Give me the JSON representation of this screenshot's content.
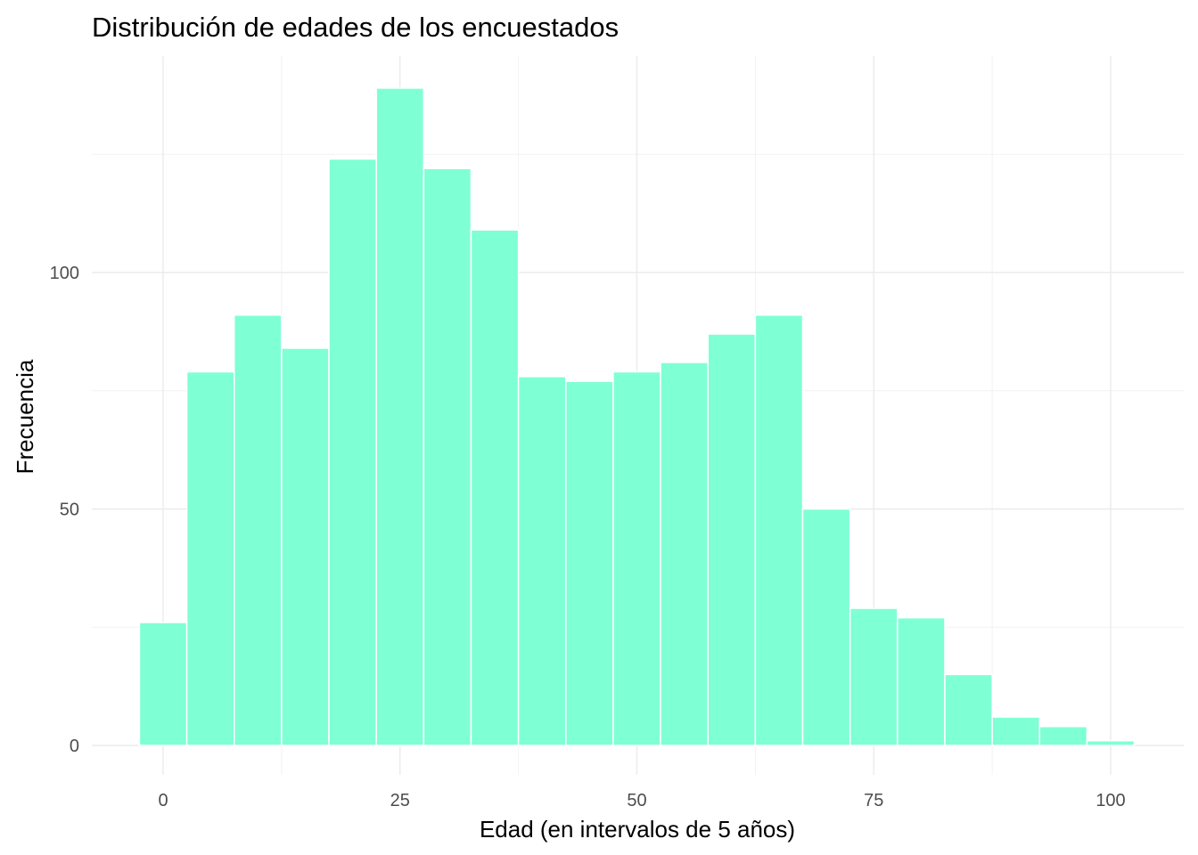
{
  "chart_data": {
    "type": "bar",
    "title": "Distribución de edades de los encuestados",
    "xlabel": "Edad (en intervalos de 5 años)",
    "ylabel": "Frecuencia",
    "bin_width": 5,
    "x": [
      0,
      5,
      10,
      15,
      20,
      25,
      30,
      35,
      40,
      45,
      50,
      55,
      60,
      65,
      70,
      75,
      80,
      85,
      90,
      95,
      100
    ],
    "values": [
      26,
      79,
      91,
      84,
      124,
      139,
      122,
      109,
      78,
      77,
      79,
      81,
      87,
      91,
      50,
      29,
      27,
      15,
      6,
      4,
      1
    ],
    "xlim": [
      -2.5,
      102.5
    ],
    "ylim": [
      0,
      139
    ],
    "x_ticks": [
      "0",
      "25",
      "50",
      "75",
      "100"
    ],
    "y_ticks": [
      "0",
      "50",
      "100"
    ],
    "bar_color": "#7fffd4",
    "grid": true,
    "legend": "none"
  }
}
